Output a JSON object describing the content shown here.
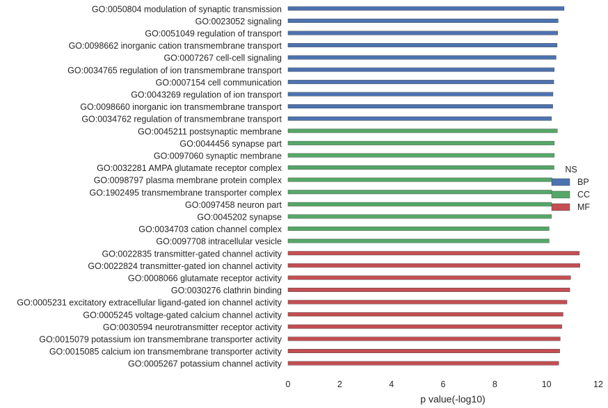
{
  "chart_data": {
    "type": "bar",
    "orientation": "horizontal",
    "title": "",
    "xlabel": "p value(-log10)",
    "ylabel": "",
    "xlim": [
      0,
      12
    ],
    "xticks": [
      "0",
      "2",
      "4",
      "6",
      "8",
      "10",
      "12"
    ],
    "grid": false,
    "legend": {
      "title": "NS",
      "placement": "center-right",
      "entries": [
        {
          "name": "BP",
          "color": "#4c72b0"
        },
        {
          "name": "CC",
          "color": "#55a868"
        },
        {
          "name": "MF",
          "color": "#c44e52"
        }
      ]
    },
    "categories": [
      "GO:0050804 modulation of synaptic transmission",
      "GO:0023052 signaling",
      "GO:0051049 regulation of transport",
      "GO:0098662 inorganic cation transmembrane transport",
      "GO:0007267 cell-cell signaling",
      "GO:0034765 regulation of ion transmembrane transport",
      "GO:0007154 cell communication",
      "GO:0043269 regulation of ion transport",
      "GO:0098660 inorganic ion transmembrane transport",
      "GO:0034762 regulation of transmembrane transport",
      "GO:0045211 postsynaptic membrane",
      "GO:0044456 synapse part",
      "GO:0097060 synaptic membrane",
      "GO:0032281 AMPA glutamate receptor complex",
      "GO:0098797 plasma membrane protein complex",
      "GO:1902495 transmembrane transporter complex",
      "GO:0097458 neuron part",
      "GO:0045202 synapse",
      "GO:0034703 cation channel complex",
      "GO:0097708 intracellular vesicle",
      "GO:0022835 transmitter-gated channel activity",
      "GO:0022824 transmitter-gated ion channel activity",
      "GO:0008066 glutamate receptor activity",
      "GO:0030276 clathrin binding",
      "GO:0005231 excitatory extracellular ligand-gated ion channel activity",
      "GO:0005245 voltage-gated calcium channel activity",
      "GO:0030594 neurotransmitter receptor activity",
      "GO:0015079 potassium ion transmembrane transporter activity",
      "GO:0015085 calcium ion transmembrane transporter activity",
      "GO:0005267 potassium channel activity"
    ],
    "series": [
      {
        "name": "BP",
        "color": "#4c72b0",
        "values": [
          10.68,
          10.45,
          10.43,
          10.41,
          10.37,
          10.3,
          10.28,
          10.25,
          10.24,
          10.19,
          null,
          null,
          null,
          null,
          null,
          null,
          null,
          null,
          null,
          null,
          null,
          null,
          null,
          null,
          null,
          null,
          null,
          null,
          null,
          null
        ]
      },
      {
        "name": "CC",
        "color": "#55a868",
        "values": [
          null,
          null,
          null,
          null,
          null,
          null,
          null,
          null,
          null,
          null,
          10.42,
          10.3,
          10.3,
          10.29,
          10.21,
          10.2,
          10.19,
          10.19,
          10.1,
          10.1,
          null,
          null,
          null,
          null,
          null,
          null,
          null,
          null,
          null,
          null
        ]
      },
      {
        "name": "MF",
        "color": "#c44e52",
        "values": [
          null,
          null,
          null,
          null,
          null,
          null,
          null,
          null,
          null,
          null,
          null,
          null,
          null,
          null,
          null,
          null,
          null,
          null,
          null,
          null,
          11.27,
          11.29,
          10.93,
          10.9,
          10.79,
          10.64,
          10.59,
          10.53,
          10.51,
          10.47
        ]
      }
    ]
  }
}
